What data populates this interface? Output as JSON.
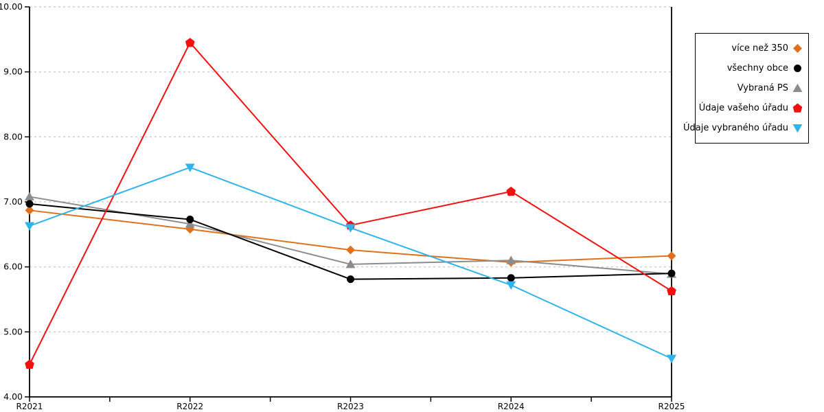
{
  "chart_data": {
    "type": "line",
    "title": "",
    "xlabel": "",
    "ylabel": "",
    "categories": [
      "R2021",
      "R2022",
      "R2023",
      "R2024",
      "R2025"
    ],
    "ylim": [
      4,
      10
    ],
    "y_ticks": [
      4,
      5,
      6,
      7,
      8,
      9,
      10
    ],
    "y_tick_labels": [
      "4.00",
      "5.00",
      "6.00",
      "7.00",
      "8.00",
      "9.00",
      "10.00"
    ],
    "grid": "horizontal-dashed",
    "minor_x_ticks_between_categories": true,
    "legend_position": "right-outside",
    "legend_marker_side": "right",
    "series": [
      {
        "name": "více než 350",
        "marker": "diamond",
        "color": "#e1701a",
        "values": [
          6.87,
          6.58,
          6.26,
          6.07,
          6.17
        ]
      },
      {
        "name": "všechny obce",
        "marker": "circle",
        "color": "#000000",
        "values": [
          6.97,
          6.73,
          5.81,
          5.83,
          5.9
        ]
      },
      {
        "name": "Vybraná PS",
        "marker": "triangle-up",
        "color": "#8c8c8c",
        "values": [
          7.08,
          6.66,
          6.04,
          6.1,
          5.89
        ]
      },
      {
        "name": "Údaje vašeho úřadu",
        "marker": "pentagon",
        "color": "#f40f0f",
        "values": [
          4.5,
          9.45,
          6.64,
          7.16,
          5.63
        ]
      },
      {
        "name": "Údaje vybraného úřadu",
        "marker": "triangle-down",
        "color": "#2eb3ea",
        "values": [
          6.63,
          7.53,
          6.6,
          5.72,
          4.59
        ]
      }
    ],
    "colors": {
      "axis": "#000000",
      "gridline": "#c3c3c3",
      "tick_label": "#000000"
    }
  }
}
